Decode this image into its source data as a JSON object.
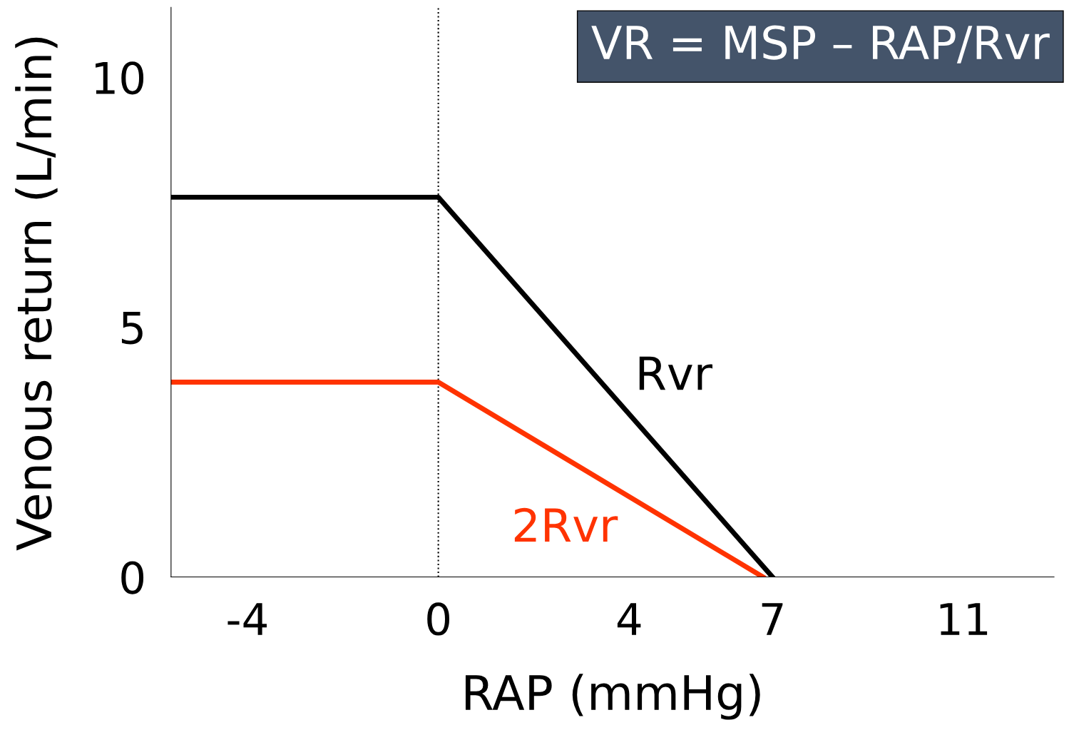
{
  "chart_data": {
    "type": "line",
    "xlabel": "RAP (mmHg)",
    "ylabel": "Venous return (L/min)",
    "xlim": [
      -5.6,
      12.9
    ],
    "ylim": [
      0,
      11.4
    ],
    "xticks": [
      -4,
      0,
      4,
      7,
      11
    ],
    "yticks": [
      0,
      5,
      10
    ],
    "series": [
      {
        "name": "Rvr",
        "color": "#000000",
        "x": [
          -5.6,
          0,
          7
        ],
        "values": [
          7.6,
          7.6,
          0
        ]
      },
      {
        "name": "2Rvr",
        "color": "#ff3300",
        "x": [
          -5.6,
          0,
          6.8
        ],
        "values": [
          3.9,
          3.9,
          0
        ]
      }
    ],
    "ref_lines": [
      {
        "axis": "x",
        "value": 0,
        "color": "#000000",
        "line_style": "dotted"
      }
    ],
    "annotations": [
      "VR = MSP – RAP/Rvr"
    ],
    "grid": false,
    "legend": false,
    "marker": "none",
    "line_style": "solid"
  }
}
